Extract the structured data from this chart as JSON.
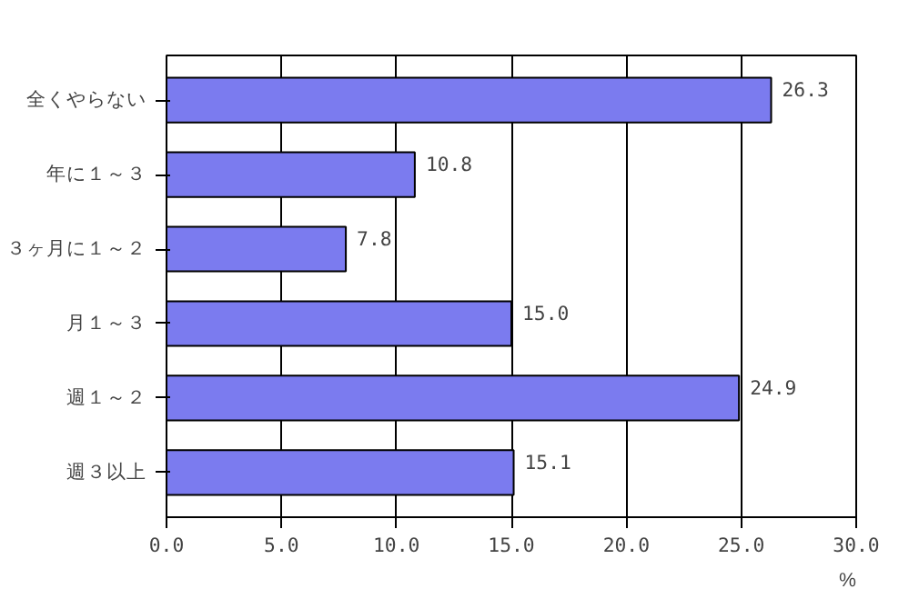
{
  "chart_data": {
    "type": "bar",
    "orientation": "horizontal",
    "categories": [
      "全くやらない",
      "年に１～３",
      "３ヶ月に１～２",
      "月１～３",
      "週１～２",
      "週３以上"
    ],
    "values": [
      26.3,
      10.8,
      7.8,
      15.0,
      24.9,
      15.1
    ],
    "value_labels": [
      "26.3",
      "10.8",
      "7.8",
      "15.0",
      "24.9",
      "15.1"
    ],
    "color": "#7b7bef",
    "xlim": [
      0,
      30
    ],
    "xticks": [
      {
        "value": 0,
        "label": "0.0"
      },
      {
        "value": 5,
        "label": "5.0"
      },
      {
        "value": 10,
        "label": "10.0"
      },
      {
        "value": 15,
        "label": "15.0"
      },
      {
        "value": 20,
        "label": "20.0"
      },
      {
        "value": 25,
        "label": "25.0"
      },
      {
        "value": 30,
        "label": "30.0"
      }
    ],
    "xlabel": "%",
    "grid": "x"
  }
}
